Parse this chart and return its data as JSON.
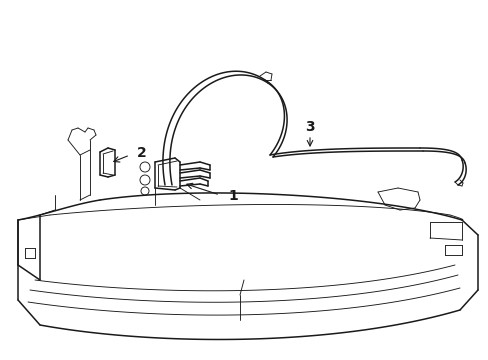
{
  "background_color": "#ffffff",
  "line_color": "#1a1a1a",
  "lw_main": 1.1,
  "lw_thin": 0.65,
  "lw_thick": 1.4,
  "label_1": "1",
  "label_2": "2",
  "label_3": "3",
  "figsize": [
    4.89,
    3.6
  ],
  "dpi": 100
}
